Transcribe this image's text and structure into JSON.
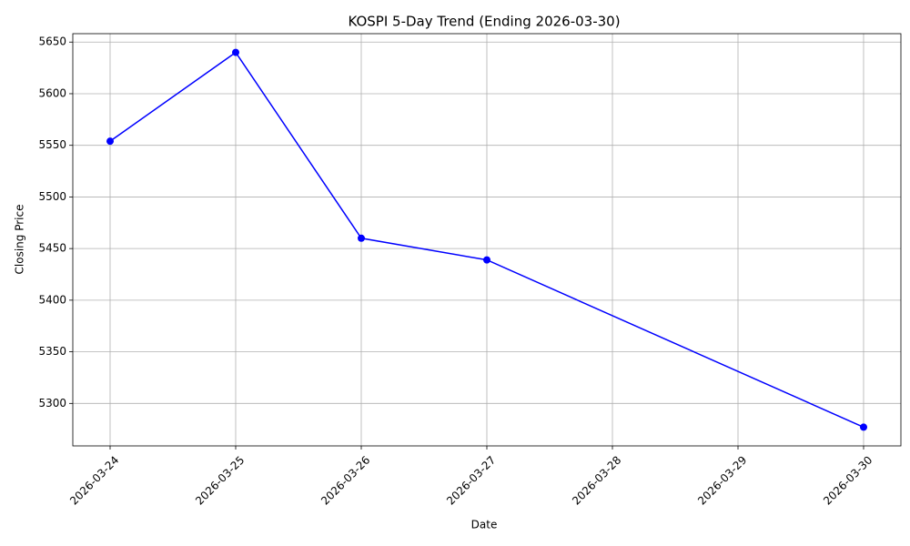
{
  "chart_data": {
    "type": "line",
    "title": "KOSPI 5-Day Trend (Ending 2026-03-30)",
    "x_label": "Date",
    "y_label": "Closing Price",
    "x": [
      "2026-03-24",
      "2026-03-25",
      "2026-03-26",
      "2026-03-27",
      "2026-03-30"
    ],
    "series": [
      {
        "name": "KOSPI",
        "color": "#0000ff",
        "values": [
          5554,
          5640,
          5460,
          5439,
          5277
        ]
      }
    ],
    "xlim": [
      "2026-03-24",
      "2026-03-30"
    ],
    "xticks": [
      "2026-03-24",
      "2026-03-25",
      "2026-03-26",
      "2026-03-27",
      "2026-03-28",
      "2026-03-29",
      "2026-03-30"
    ],
    "ylim": [
      5258.85,
      5658.15
    ],
    "yticks": [
      5300,
      5350,
      5400,
      5450,
      5500,
      5550,
      5600,
      5650
    ],
    "grid": true
  }
}
